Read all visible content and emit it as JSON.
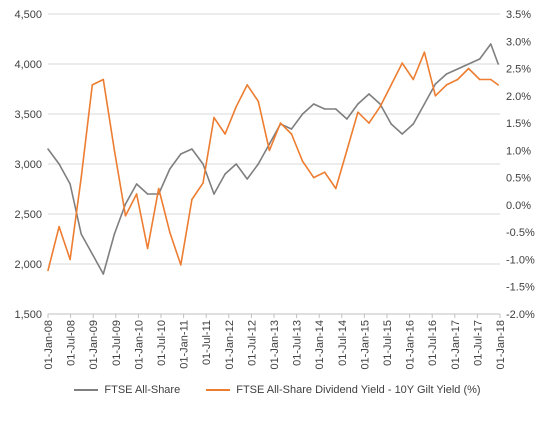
{
  "chart_data": {
    "type": "line",
    "title": "",
    "xlabel": "",
    "ylabel": "",
    "ylim_left": [
      1500,
      4500
    ],
    "ylim_right": [
      -2.0,
      3.5
    ],
    "y_left_ticks": [
      "1,500",
      "2,000",
      "2,500",
      "3,000",
      "3,500",
      "4,000",
      "4,500"
    ],
    "y_left_tick_values": [
      1500,
      2000,
      2500,
      3000,
      3500,
      4000,
      4500
    ],
    "y_right_ticks": [
      "-2.0%",
      "-1.5%",
      "-1.0%",
      "-0.5%",
      "0.0%",
      "0.5%",
      "1.0%",
      "1.5%",
      "2.0%",
      "2.5%",
      "3.0%",
      "3.5%"
    ],
    "y_right_tick_values": [
      -2.0,
      -1.5,
      -1.0,
      -0.5,
      0.0,
      0.5,
      1.0,
      1.5,
      2.0,
      2.5,
      3.0,
      3.5
    ],
    "x_tick_labels": [
      "01-Jan-08",
      "01-Jul-08",
      "01-Jan-09",
      "01-Jul-09",
      "01-Jan-10",
      "01-Jul-10",
      "01-Jan-11",
      "01-Jul-11",
      "01-Jan-12",
      "01-Jul-12",
      "01-Jan-13",
      "01-Jul-13",
      "01-Jan-14",
      "01-Jul-14",
      "01-Jan-15",
      "01-Jul-15",
      "01-Jan-16",
      "01-Jul-16",
      "01-Jan-17",
      "01-Jul-17",
      "01-Jan-18"
    ],
    "grid": "horizontal",
    "legend_position": "bottom",
    "x": [
      "2008-01",
      "2008-04",
      "2008-07",
      "2008-10",
      "2009-01",
      "2009-04",
      "2009-07",
      "2009-10",
      "2010-01",
      "2010-04",
      "2010-07",
      "2010-10",
      "2011-01",
      "2011-04",
      "2011-07",
      "2011-10",
      "2012-01",
      "2012-04",
      "2012-07",
      "2012-10",
      "2013-01",
      "2013-04",
      "2013-07",
      "2013-10",
      "2014-01",
      "2014-04",
      "2014-07",
      "2014-10",
      "2015-01",
      "2015-04",
      "2015-07",
      "2015-10",
      "2016-01",
      "2016-04",
      "2016-07",
      "2016-10",
      "2017-01",
      "2017-04",
      "2017-07",
      "2017-10",
      "2018-01",
      "2018-03"
    ],
    "series": [
      {
        "name": "FTSE All-Share",
        "color": "#7f7f7f",
        "axis": "left",
        "values": [
          3150,
          3000,
          2800,
          2300,
          2100,
          1900,
          2300,
          2600,
          2800,
          2700,
          2700,
          2950,
          3100,
          3150,
          3000,
          2700,
          2900,
          3000,
          2850,
          3000,
          3200,
          3400,
          3350,
          3500,
          3600,
          3550,
          3550,
          3450,
          3600,
          3700,
          3600,
          3400,
          3300,
          3400,
          3600,
          3800,
          3900,
          3950,
          4000,
          4050,
          4200,
          4000
        ]
      },
      {
        "name": "FTSE All-Share Dividend Yield - 10Y Gilt Yield (%)",
        "color": "#ed7d31",
        "axis": "right",
        "values": [
          -1.2,
          -0.4,
          -1.0,
          0.5,
          2.2,
          2.3,
          1.0,
          -0.2,
          0.2,
          -0.8,
          0.3,
          -0.5,
          -1.1,
          0.1,
          0.4,
          1.6,
          1.3,
          1.8,
          2.2,
          1.9,
          1.0,
          1.5,
          1.3,
          0.8,
          0.5,
          0.6,
          0.3,
          1.0,
          1.7,
          1.5,
          1.8,
          2.2,
          2.6,
          2.3,
          2.8,
          2.0,
          2.2,
          2.3,
          2.5,
          2.3,
          2.3,
          2.2
        ]
      }
    ]
  }
}
